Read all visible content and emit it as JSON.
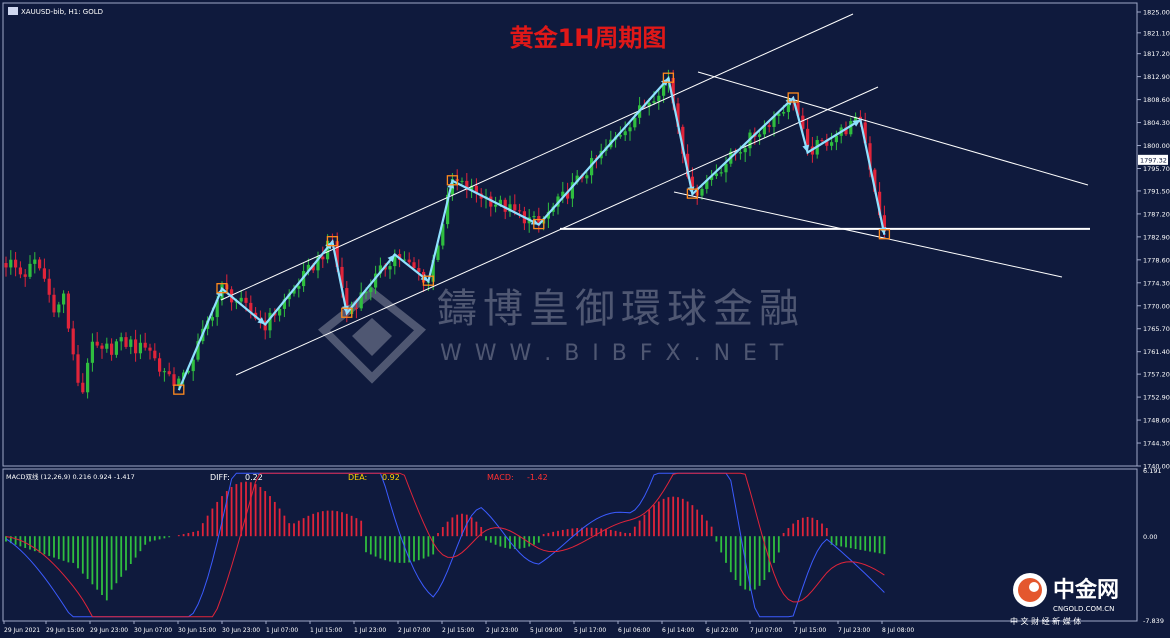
{
  "chart_data": [
    {
      "type": "candlestick",
      "symbol_label": "XAUUSD-bib, H1:  GOLD",
      "title": "黄金1H周期图",
      "y_ticks": [
        "1825.00",
        "1821.10",
        "1817.20",
        "1812.90",
        "1808.60",
        "1804.30",
        "1800.00",
        "1795.70",
        "1791.50",
        "1787.20",
        "1782.90",
        "1778.60",
        "1774.30",
        "1770.00",
        "1765.70",
        "1761.40",
        "1757.20",
        "1752.90",
        "1748.60",
        "1744.30",
        "1740.00"
      ],
      "ylim": [
        1740.0,
        1825.0
      ],
      "current_price": "1797.32",
      "x_ticks": [
        "29 Jun 2021",
        "29 Jun 15:00",
        "29 Jun 23:00",
        "30 Jun 07:00",
        "30 Jun 15:00",
        "30 Jun 23:00",
        "1 Jul 07:00",
        "1 Jul 15:00",
        "1 Jul 23:00",
        "2 Jul 07:00",
        "2 Jul 15:00",
        "2 Jul 23:00",
        "5 Jul 09:00",
        "5 Jul 17:00",
        "6 Jul 06:00",
        "6 Jul 14:00",
        "6 Jul 22:00",
        "7 Jul 07:00",
        "7 Jul 15:00",
        "7 Jul 23:00",
        "8 Jul 08:00"
      ],
      "horizontal_line": 1784.4,
      "zigzag_pivots": [
        {
          "bar": 36,
          "price": 1754.2
        },
        {
          "bar": 45,
          "price": 1773.2
        },
        {
          "bar": 54,
          "price": 1766.5
        },
        {
          "bar": 68,
          "price": 1782.0
        },
        {
          "bar": 71,
          "price": 1768.6
        },
        {
          "bar": 81,
          "price": 1779.6
        },
        {
          "bar": 88,
          "price": 1774.6
        },
        {
          "bar": 93,
          "price": 1793.4
        },
        {
          "bar": 111,
          "price": 1785.2
        },
        {
          "bar": 138,
          "price": 1812.6
        },
        {
          "bar": 143,
          "price": 1790.9
        },
        {
          "bar": 164,
          "price": 1808.9
        },
        {
          "bar": 167,
          "price": 1798.7
        },
        {
          "bar": 178,
          "price": 1804.8
        },
        {
          "bar": 183,
          "price": 1783.3
        }
      ],
      "watermark_name": "鑄博皇御環球金融",
      "watermark_url": "W W W . B I B F X . N E T",
      "colors": {
        "background": "#0f1a3d",
        "up": "#2fbe3f",
        "down": "#e0243a",
        "zigzag": "#8fe0ff",
        "pivot_box": "#ff8a1e",
        "title": "#e01818"
      }
    },
    {
      "type": "macd",
      "label": "MACD双线 (12,26,9) 0.216 0.924 -1.417",
      "diff_label": "DIFF:",
      "diff_value": "0.22",
      "dea_label": "DEA:",
      "dea_value": "0.92",
      "macd_label": "MACD:",
      "macd_value": "-1.42",
      "y_ticks": [
        "6.191",
        "0.00",
        "-7.839"
      ],
      "ylim": [
        -7.839,
        6.191
      ]
    }
  ],
  "brand": {
    "name": "中金网",
    "sub": "CNGOLD.COM.CN",
    "tagline": "中 文 财 经 新 媒 体"
  }
}
